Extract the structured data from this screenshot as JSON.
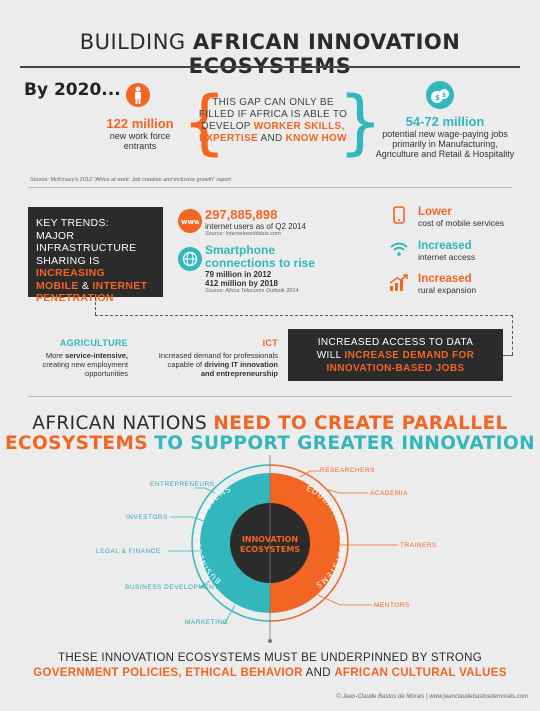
{
  "header": {
    "title_prefix": "BUILDING",
    "title_strong": "AFRICAN INNOVATION ECOSYSTEMS"
  },
  "by2020": {
    "heading": "By 2020...",
    "left_stat": {
      "value": "122 million",
      "desc_1": "new work force",
      "desc_2": "entrants",
      "icon": "person-icon"
    },
    "gap": {
      "line1": "THIS GAP CAN ONLY BE",
      "line2": "FILLED IF AFRICA IS ABLE TO",
      "line3": "DEVELOP",
      "line3_strong": "WORKER SKILLS,",
      "line4_strong_a": "EXPERTISE",
      "line4_and": "AND",
      "line4_strong_b": "KNOW HOW"
    },
    "right_stat": {
      "value": "54-72 million",
      "desc_1": "potential new wage-paying jobs",
      "desc_2": "primarily in Manufacturing,",
      "desc_3": "Agriculture and Retail & Hospitality",
      "icon": "money-bag-icon"
    },
    "source": "Source: McKinsey's 2012 \"Africa at work: Job creation and inclusive growth\" report"
  },
  "trends": {
    "box_l1": "KEY TRENDS:",
    "box_l2": "MAJOR",
    "box_l3": "INFRASTRUCTURE",
    "box_l4a": "SHARING IS",
    "box_l4b": "INCREASING",
    "box_l5a": "MOBILE",
    "box_l5b": "&",
    "box_l5c": "INTERNET",
    "box_l6": "PENETRATION",
    "internet": {
      "value": "297,885,898",
      "desc": "internet users as of Q2 2014",
      "source": "Source: Internetworldstats.com",
      "icon": "www-icon"
    },
    "smartphone": {
      "title_1": "Smartphone",
      "title_2": "connections to rise",
      "line_a": "79 million in 2012",
      "line_b": "412 million by 2018",
      "source": "Source: Africa Telecoms Outlook 2014",
      "icon": "globe-icon"
    },
    "right": [
      {
        "big": "Lower",
        "sub": "cost of mobile services",
        "icon": "phone-icon"
      },
      {
        "big": "Increased",
        "sub": "internet access",
        "icon": "wifi-icon"
      },
      {
        "big": "Increased",
        "sub": "rural expansion",
        "icon": "growth-arrow-icon"
      }
    ]
  },
  "sectors": {
    "agriculture": {
      "head": "AGRICULTURE",
      "l1a": "More",
      "l1b": "service-intensive,",
      "l2": "creating new employment",
      "l3": "opportunities"
    },
    "ict": {
      "head": "ICT",
      "l1": "Increased demand for professionals",
      "l2a": "capable of",
      "l2b": "driving IT innovation",
      "l3": "and entrepreneurship"
    },
    "access_box": {
      "l1": "INCREASED ACCESS TO DATA",
      "l2a": "WILL",
      "l2b": "INCREASE DEMAND FOR",
      "l3": "INNOVATION-BASED JOBS"
    }
  },
  "ecosystems": {
    "title_l1a": "AFRICAN NATIONS",
    "title_l1b": "NEED TO CREATE PARALLEL",
    "title_l2a": "ECOSYSTEMS",
    "title_l2b": "TO SUPPORT GREATER INNOVATION",
    "center_1": "INNOVATION",
    "center_2": "ECOSYSTEMS",
    "ring_business": "BUSINESS ECOSYSTEMS",
    "ring_education": "EDUCATION ECOSYSTEMS",
    "left_labels": [
      "ENTREPRENEURS",
      "INVESTORS",
      "LEGAL & FINANCE",
      "BUSINESS DEVELOPMENT",
      "MARKETING"
    ],
    "right_labels": [
      "RESEARCHERS",
      "ACADEMIA",
      "TRAINERS",
      "MENTORS"
    ],
    "colors": {
      "teal": "#31b7bc",
      "orange": "#f26522",
      "dark": "#2b2b2b"
    }
  },
  "bottom": {
    "l1": "THESE INNOVATION ECOSYSTEMS MUST BE UNDERPINNED BY STRONG",
    "l2a": "GOVERNMENT POLICIES,",
    "l2b": "ETHICAL BEHAVIOR",
    "l2c": "AND",
    "l2d": "AFRICAN CULTURAL VALUES",
    "credit": "© Jean-Claude Bastos de Morais  |  www.jeanclaudebastosdemorais.com"
  }
}
